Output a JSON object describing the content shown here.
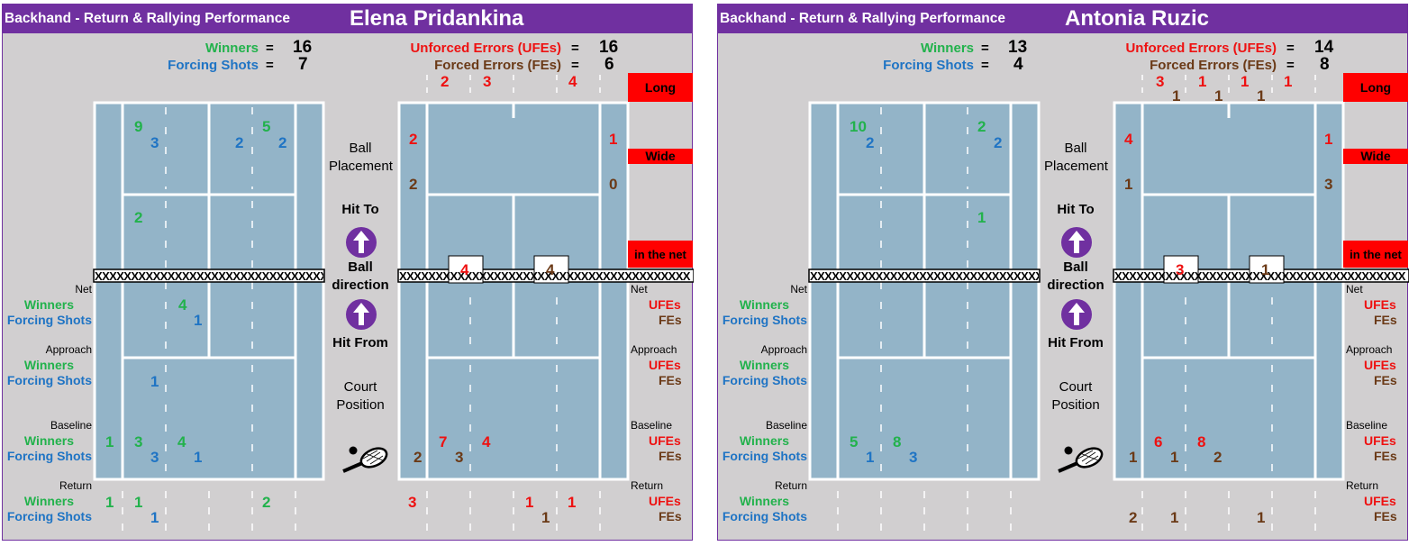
{
  "chart_data": [
    {
      "type": "table",
      "header": "Backhand - Return & Rallying Performance",
      "player": "Elena Pridankina",
      "summary": {
        "winners_label": "Winners",
        "winners": 16,
        "forcing_label": "Forcing Shots",
        "forcing": 7,
        "ufe_label": "Unforced Errors (UFEs)",
        "ufe": 16,
        "fe_label": "Forced Errors (FEs)",
        "fe": 6,
        "eq": "="
      },
      "hit_from": {
        "deep_left_w": "9",
        "deep_left_f": "3",
        "deep_right_f": "2",
        "deep_right_w": "5",
        "deep_right_f2": "2",
        "mid_left_w": "2",
        "mid_right_w": "",
        "net_w": "4",
        "net_f": "1",
        "approach_w": "",
        "approach_f": "1",
        "base_w1": "1",
        "base_w2": "3",
        "base_f2": "3",
        "base_w3": "4",
        "base_f3": "1",
        "base_w4": "",
        "base_f4": "",
        "ret_w1": "1",
        "ret_w2": "1",
        "ret_f2": "1",
        "ret_w3": "",
        "ret_w4": "2",
        "ret_f4": ""
      },
      "errors": {
        "long_ufe": [
          "2",
          "3",
          "",
          "4"
        ],
        "long_fe": [
          "",
          "",
          "",
          ""
        ],
        "wide_left_ufe": "2",
        "wide_left_fe": "2",
        "wide_right_ufe": "1",
        "wide_right_fe": "0",
        "net_left": "4",
        "net_right": "4",
        "base_fe1": "2",
        "base_ufe2": "7",
        "base_fe2": "3",
        "base_ufe3": "4",
        "base_fe3": "",
        "base_fe4": "",
        "ret_ufe1": "3",
        "ret_fe1": "",
        "ret_fe2": "",
        "ret_ufe3": "1",
        "ret_fe3": "1",
        "ret_ufe4": "1"
      }
    },
    {
      "type": "table",
      "header": "Backhand - Return & Rallying Performance",
      "player": "Antonia Ruzic",
      "summary": {
        "winners_label": "Winners",
        "winners": 13,
        "forcing_label": "Forcing Shots",
        "forcing": 4,
        "ufe_label": "Unforced Errors (UFEs)",
        "ufe": 14,
        "fe_label": "Forced Errors (FEs)",
        "fe": 8,
        "eq": "="
      },
      "hit_from": {
        "deep_left_w": "10",
        "deep_left_f": "2",
        "deep_right_f": "",
        "deep_right_w": "2",
        "deep_right_f2": "2",
        "mid_left_w": "",
        "mid_right_w": "1",
        "net_w": "",
        "net_f": "",
        "approach_w": "",
        "approach_f": "",
        "base_w1": "",
        "base_w2": "5",
        "base_f2": "1",
        "base_w3": "8",
        "base_f3": "3",
        "base_w4": "",
        "base_f4": "",
        "ret_w1": "",
        "ret_w2": "",
        "ret_f2": "",
        "ret_w3": "",
        "ret_w4": "",
        "ret_f4": ""
      },
      "errors": {
        "long_ufe": [
          "3",
          "1",
          "1",
          "1"
        ],
        "long_fe": [
          "1",
          "1",
          "1",
          ""
        ],
        "wide_left_ufe": "4",
        "wide_left_fe": "1",
        "wide_right_ufe": "1",
        "wide_right_fe": "3",
        "net_left": "3",
        "net_right": "1",
        "base_fe1": "1",
        "base_ufe2": "6",
        "base_fe2": "1",
        "base_ufe3": "8",
        "base_fe3": "2",
        "base_fe4": "",
        "ret_ufe1": "",
        "ret_fe1": "2",
        "ret_fe2": "1",
        "ret_ufe3": "",
        "ret_fe3": "1",
        "ret_ufe4": ""
      }
    }
  ],
  "labels": {
    "net": "Net",
    "approach": "Approach",
    "baseline": "Baseline",
    "return": "Return",
    "winners": "Winners",
    "forcing": "Forcing Shots",
    "ufes": "UFEs",
    "fes": "FEs",
    "ball_placement_1": "Ball",
    "ball_placement_2": "Placement",
    "hit_to": "Hit To",
    "ball_dir_1": "Ball",
    "ball_dir_2": "direction",
    "hit_from": "Hit From",
    "court_pos_1": "Court",
    "court_pos_2": "Position",
    "long": "Long",
    "wide": "Wide",
    "in_the_net": "in the net",
    "net_tape": "XXXXXXXXXXXXXXXXXXXXXXXXXXXXXXXXXXXXXXXX"
  },
  "colors": {
    "header": "#7030a0",
    "panel": "#d1cfd0",
    "court": "#93b4c8",
    "winners": "#22b24c",
    "forcing": "#1f74c4",
    "ufe": "#ee1111",
    "fe": "#6b3a17",
    "error_box": "#ff0000"
  },
  "icons": [
    "arrow-up-circle-icon",
    "tennis-racket-icon"
  ]
}
